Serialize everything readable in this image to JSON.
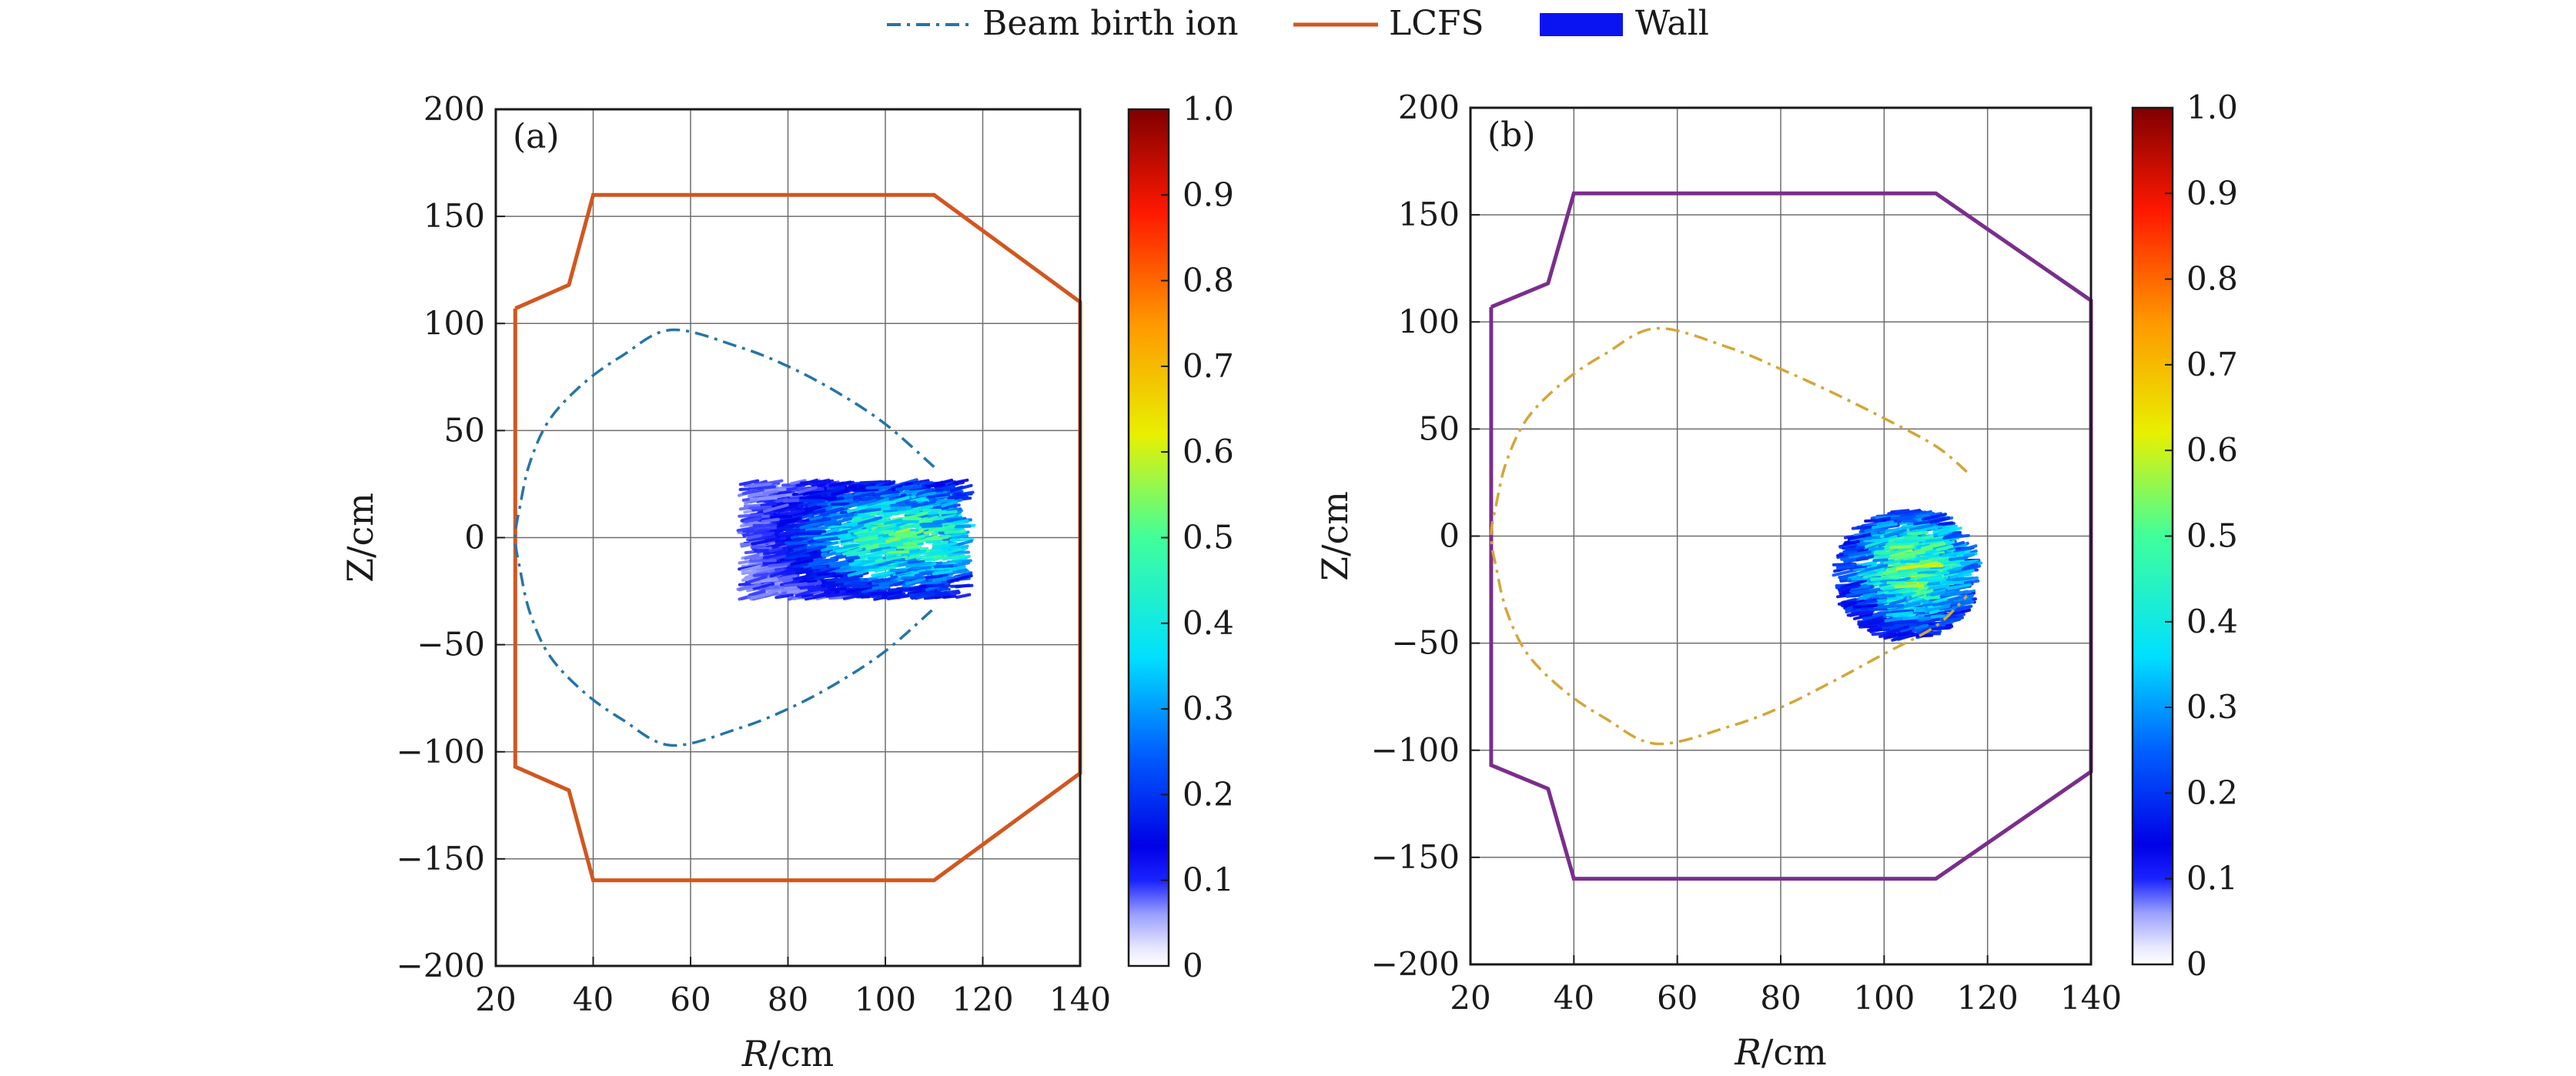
{
  "legend": [
    {
      "label": "Beam birth ion",
      "style": "dashdot",
      "color": "#2475a8"
    },
    {
      "label": "LCFS",
      "style": "solid",
      "color": "#d2561f"
    },
    {
      "label": "Wall",
      "style": "patch",
      "color": "#0a14f0"
    }
  ],
  "chart_data": [
    {
      "type": "heatmap",
      "panel_label": "(a)",
      "xlabel_italic": "R",
      "xlabel_unit": "/cm",
      "ylabel": "Z/cm",
      "xlim": [
        20,
        140
      ],
      "ylim": [
        -200,
        200
      ],
      "x_ticks": [
        20,
        40,
        60,
        80,
        100,
        120,
        140
      ],
      "y_ticks": [
        200,
        150,
        100,
        50,
        0,
        -50,
        -100,
        -150,
        -200
      ],
      "y_tick_labels": [
        "200",
        "150",
        "100",
        "50",
        "0",
        "−50",
        "−100",
        "−150",
        "−200"
      ],
      "grid": true,
      "boundary_color": "#d2561f",
      "boundary": [
        [
          24,
          107
        ],
        [
          35,
          118
        ],
        [
          40,
          160
        ],
        [
          110,
          160
        ],
        [
          140,
          110
        ],
        [
          140,
          -110
        ],
        [
          110,
          -160
        ],
        [
          40,
          -160
        ],
        [
          35,
          -118
        ],
        [
          24,
          -107
        ],
        [
          24,
          107
        ]
      ],
      "birth_color": "#2475a8",
      "birth_curve": [
        [
          110,
          33
        ],
        [
          100,
          53
        ],
        [
          90,
          68
        ],
        [
          80,
          80
        ],
        [
          70,
          89
        ],
        [
          56,
          97
        ],
        [
          46,
          85
        ],
        [
          38,
          72
        ],
        [
          31,
          55
        ],
        [
          27,
          35
        ],
        [
          25,
          15
        ],
        [
          24,
          0
        ],
        [
          25,
          -15
        ],
        [
          27,
          -35
        ],
        [
          31,
          -55
        ],
        [
          38,
          -72
        ],
        [
          46,
          -85
        ],
        [
          56,
          -97
        ],
        [
          70,
          -89
        ],
        [
          80,
          -80
        ],
        [
          90,
          -68
        ],
        [
          100,
          -53
        ],
        [
          110,
          -33
        ]
      ],
      "deposition_region": {
        "r_min": 72,
        "r_max": 116,
        "z_min": -28,
        "z_max": 26,
        "peak_r": 104,
        "peak_z": 0,
        "peak_value": 0.55
      },
      "colorbar": {
        "min": 0,
        "max": 1.0,
        "ticks": [
          0,
          0.1,
          0.2,
          0.3,
          0.4,
          0.5,
          0.6,
          0.7,
          0.8,
          0.9,
          1.0
        ],
        "tick_labels": [
          "0",
          "0.1",
          "0.2",
          "0.3",
          "0.4",
          "0.5",
          "0.6",
          "0.7",
          "0.8",
          "0.9",
          "1.0"
        ]
      }
    },
    {
      "type": "heatmap",
      "panel_label": "(b)",
      "xlabel_italic": "R",
      "xlabel_unit": "/cm",
      "ylabel": "Z/cm",
      "xlim": [
        20,
        140
      ],
      "ylim": [
        -200,
        200
      ],
      "x_ticks": [
        20,
        40,
        60,
        80,
        100,
        120,
        140
      ],
      "y_ticks": [
        200,
        150,
        100,
        50,
        0,
        -50,
        -100,
        -150,
        -200
      ],
      "y_tick_labels": [
        "200",
        "150",
        "100",
        "50",
        "0",
        "−50",
        "−100",
        "−150",
        "−200"
      ],
      "grid": true,
      "boundary_color": "#7a2e8c",
      "boundary": [
        [
          24,
          107
        ],
        [
          35,
          118
        ],
        [
          40,
          160
        ],
        [
          110,
          160
        ],
        [
          140,
          110
        ],
        [
          140,
          -110
        ],
        [
          110,
          -160
        ],
        [
          40,
          -160
        ],
        [
          35,
          -118
        ],
        [
          24,
          -107
        ],
        [
          24,
          107
        ]
      ],
      "birth_color": "#d4a637",
      "birth_curve": [
        [
          116,
          30
        ],
        [
          110,
          42
        ],
        [
          100,
          55
        ],
        [
          90,
          67
        ],
        [
          80,
          78
        ],
        [
          70,
          88
        ],
        [
          56,
          97
        ],
        [
          46,
          85
        ],
        [
          38,
          72
        ],
        [
          31,
          55
        ],
        [
          27,
          35
        ],
        [
          25,
          15
        ],
        [
          24,
          0
        ],
        [
          25,
          -15
        ],
        [
          27,
          -35
        ],
        [
          31,
          -55
        ],
        [
          38,
          -72
        ],
        [
          46,
          -85
        ],
        [
          56,
          -97
        ],
        [
          70,
          -89
        ],
        [
          80,
          -80
        ],
        [
          90,
          -68
        ],
        [
          100,
          -55
        ],
        [
          110,
          -42
        ],
        [
          116,
          -28
        ]
      ],
      "deposition_region": {
        "r_min": 91,
        "r_max": 116,
        "z_min": -48,
        "z_max": 12,
        "peak_r": 106,
        "peak_z": -15,
        "peak_value": 0.6
      },
      "colorbar": {
        "min": 0,
        "max": 1.0,
        "ticks": [
          0,
          0.1,
          0.2,
          0.3,
          0.4,
          0.5,
          0.6,
          0.7,
          0.8,
          0.9,
          1.0
        ],
        "tick_labels": [
          "0",
          "0.1",
          "0.2",
          "0.3",
          "0.4",
          "0.5",
          "0.6",
          "0.7",
          "0.8",
          "0.9",
          "1.0"
        ]
      }
    }
  ]
}
